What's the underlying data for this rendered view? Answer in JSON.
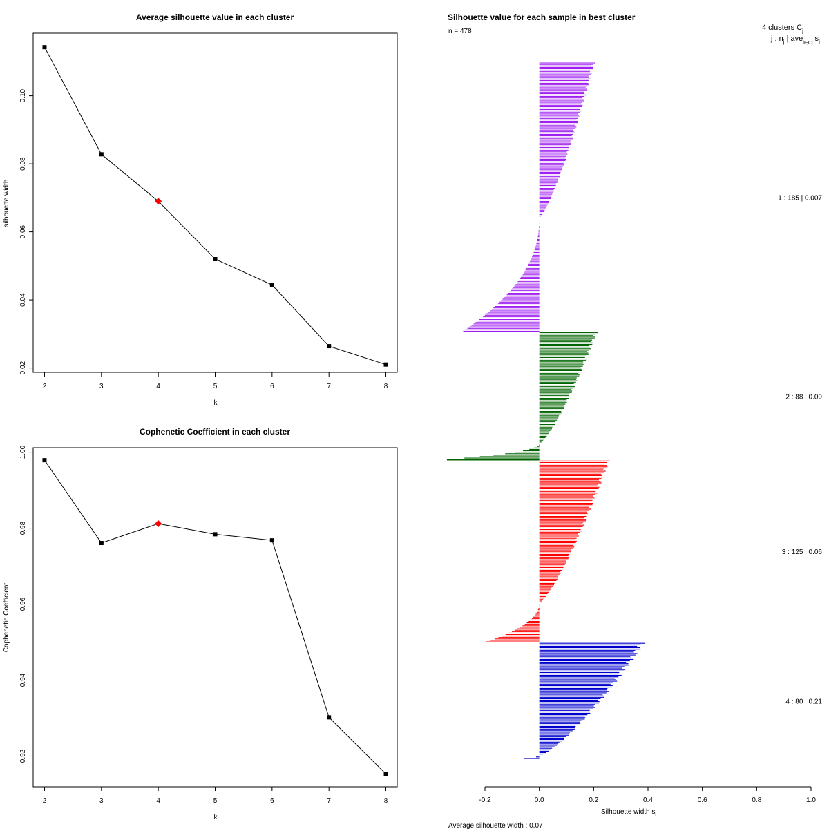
{
  "chart_data": [
    {
      "type": "line",
      "title": "Average silhouette value in each cluster",
      "xlabel": "k",
      "ylabel": "silhouette width",
      "x": [
        2,
        3,
        4,
        5,
        6,
        7,
        8
      ],
      "values": [
        0.1143,
        0.0828,
        0.069,
        0.052,
        0.0444,
        0.0264,
        0.021
      ],
      "highlight_index": 2,
      "highlight_color": "#ff0000",
      "xlim": [
        1.8,
        8.2
      ],
      "ylim": [
        0.0187,
        0.1184
      ],
      "xticks": [
        "2",
        "3",
        "4",
        "5",
        "6",
        "7",
        "8"
      ],
      "yticks": [
        0.02,
        0.04,
        0.06,
        0.08,
        0.1
      ],
      "ytick_labels": [
        "0.02",
        "0.04",
        "0.06",
        "0.08",
        "0.10"
      ]
    },
    {
      "type": "line",
      "title": "Cophenetic Coefficient in each cluster",
      "xlabel": "k",
      "ylabel": "Cophenetic Coefficient",
      "x": [
        2,
        3,
        4,
        5,
        6,
        7,
        8
      ],
      "values": [
        0.9979,
        0.9761,
        0.9812,
        0.9784,
        0.9768,
        0.9302,
        0.9153
      ],
      "highlight_index": 2,
      "highlight_color": "#ff0000",
      "xlim": [
        1.8,
        8.2
      ],
      "ylim": [
        0.9119,
        1.0012
      ],
      "xticks": [
        "2",
        "3",
        "4",
        "5",
        "6",
        "7",
        "8"
      ],
      "yticks": [
        0.92,
        0.94,
        0.96,
        0.98,
        1.0
      ],
      "ytick_labels": [
        "0.92",
        "0.94",
        "0.96",
        "0.98",
        "1.00"
      ]
    },
    {
      "type": "bar",
      "orientation": "horizontal",
      "title": "Silhouette value for each sample in best cluster",
      "n_label": "n = 478",
      "xlabel": "Silhouette width s",
      "xlabel_sub": "i",
      "xlim": [
        -0.2,
        1.0
      ],
      "xticks": [
        -0.2,
        0.0,
        0.2,
        0.4,
        0.6,
        0.8,
        1.0
      ],
      "xtick_labels": [
        "-0.2",
        "0.0",
        "0.2",
        "0.4",
        "0.6",
        "0.8",
        "1.0"
      ],
      "avg_label": "Average silhouette width :  0.07",
      "legend_header_1": "4  clusters  C",
      "legend_header_1_sub": "j",
      "legend_header_2": "j :  n",
      "legend_header_2_sub": "j",
      "legend_header_2_mid": " | ave",
      "legend_header_2_sub2": "i∈Cj",
      "legend_header_2_end": " s",
      "legend_header_2_sub3": "i",
      "clusters": [
        {
          "label": "1 :  185  |  0.007",
          "n": 185,
          "color": "#a020f0",
          "max": 0.205,
          "min": -0.28,
          "pos_frac": 0.58
        },
        {
          "label": "2 :  88  |  0.09",
          "n": 88,
          "color": "#006400",
          "max": 0.215,
          "min": -0.34,
          "pos_frac": 0.87
        },
        {
          "label": "3 :  125  |  0.06",
          "n": 125,
          "color": "#ff0000",
          "max": 0.26,
          "min": -0.195,
          "pos_frac": 0.78
        },
        {
          "label": "4 :  80  |  0.21",
          "n": 80,
          "color": "#0000cd",
          "max": 0.39,
          "min": -0.055,
          "pos_frac": 0.97
        }
      ]
    }
  ]
}
